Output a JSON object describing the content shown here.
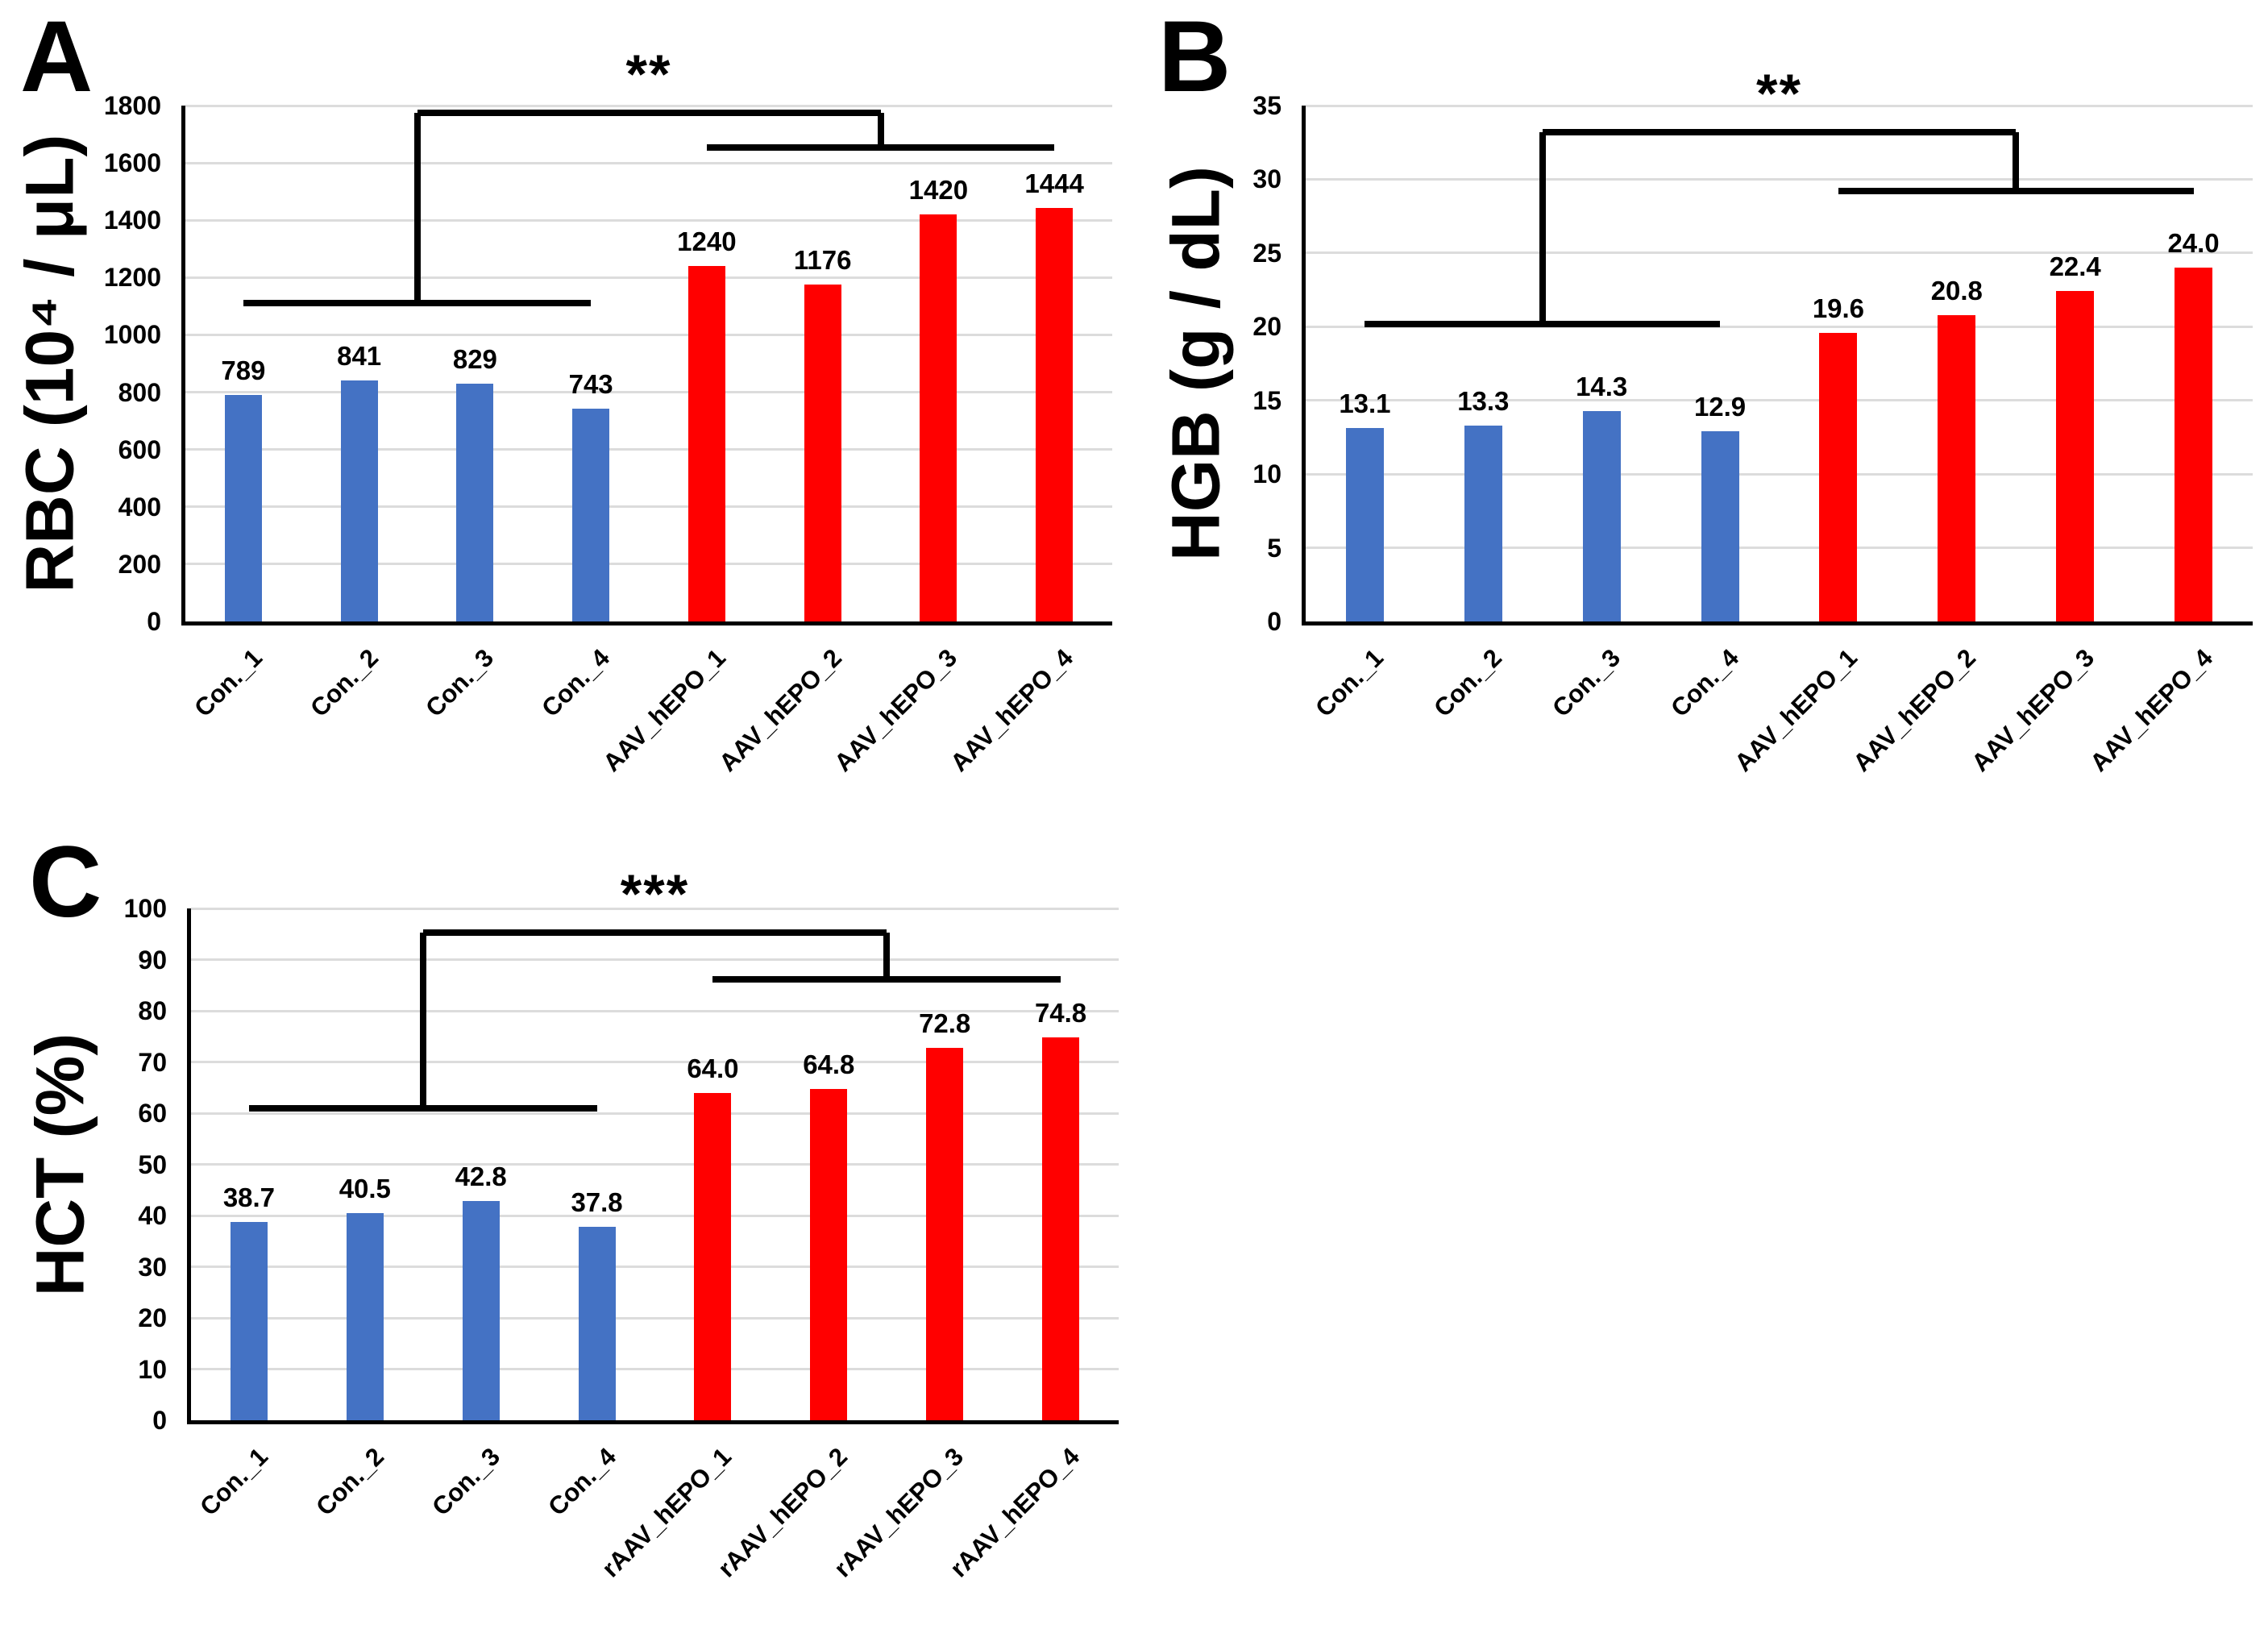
{
  "figure_colors": {
    "control_bar": "#4472C4",
    "treated_bar": "#FF0000",
    "gridline": "#DCDCDC",
    "axis": "#000000",
    "significance": "#000000",
    "background": "#FFFFFF"
  },
  "chart_data": [
    {
      "type": "bar",
      "panel": "A",
      "panel_label": "A",
      "ylabel": "RBC (10⁴ / μL)",
      "xlabel": "",
      "ylim": [
        0,
        1800
      ],
      "y_tick_step": 200,
      "y_tick_labels": [
        "0",
        "200",
        "400",
        "600",
        "800",
        "1000",
        "1200",
        "1400",
        "1600",
        "1800"
      ],
      "grid": true,
      "legend": "none",
      "categories": [
        "Con._1",
        "Con._2",
        "Con._3",
        "Con._4",
        "AAV_hEPO_1",
        "AAV_hEPO_2",
        "AAV_hEPO_3",
        "AAV_hEPO_4"
      ],
      "values": [
        789,
        841,
        829,
        743,
        1240,
        1176,
        1420,
        1444
      ],
      "value_labels": [
        "789",
        "841",
        "829",
        "743",
        "1240",
        "1176",
        "1420",
        "1444"
      ],
      "bar_groups": [
        "control",
        "control",
        "control",
        "control",
        "treated",
        "treated",
        "treated",
        "treated"
      ],
      "significance": {
        "label": "**",
        "group1": [
          0,
          3
        ],
        "group2": [
          4,
          7
        ],
        "group1_line_y": 1110,
        "group2_line_y": 1655,
        "bridge_y": 1775
      }
    },
    {
      "type": "bar",
      "panel": "B",
      "panel_label": "B",
      "ylabel": "HGB (g / dL)",
      "xlabel": "",
      "ylim": [
        0,
        35
      ],
      "y_tick_step": 5,
      "y_tick_labels": [
        "0",
        "5",
        "10",
        "15",
        "20",
        "25",
        "30",
        "35"
      ],
      "grid": true,
      "legend": "none",
      "categories": [
        "Con._1",
        "Con._2",
        "Con._3",
        "Con._4",
        "AAV_hEPO_1",
        "AAV_hEPO_2",
        "AAV_hEPO_3",
        "AAV_hEPO_4"
      ],
      "values": [
        13.1,
        13.3,
        14.3,
        12.9,
        19.6,
        20.8,
        22.4,
        24.0
      ],
      "value_labels": [
        "13.1",
        "13.3",
        "14.3",
        "12.9",
        "19.6",
        "20.8",
        "22.4",
        "24.0"
      ],
      "bar_groups": [
        "control",
        "control",
        "control",
        "control",
        "treated",
        "treated",
        "treated",
        "treated"
      ],
      "significance": {
        "label": "**",
        "group1": [
          0,
          3
        ],
        "group2": [
          4,
          7
        ],
        "group1_line_y": 20.2,
        "group2_line_y": 29.2,
        "bridge_y": 33.2
      }
    },
    {
      "type": "bar",
      "panel": "C",
      "panel_label": "C",
      "ylabel": "HCT (%)",
      "xlabel": "",
      "ylim": [
        0,
        100
      ],
      "y_tick_step": 10,
      "y_tick_labels": [
        "0",
        "10",
        "20",
        "30",
        "40",
        "50",
        "60",
        "70",
        "80",
        "90",
        "100"
      ],
      "grid": true,
      "legend": "none",
      "categories": [
        "Con._1",
        "Con._2",
        "Con._3",
        "Con._4",
        "rAAV_hEPO_1",
        "rAAV_hEPO_2",
        "rAAV_hEPO_3",
        "rAAV_hEPO_4"
      ],
      "values": [
        38.7,
        40.5,
        42.8,
        37.8,
        64.0,
        64.8,
        72.8,
        74.8
      ],
      "value_labels": [
        "38.7",
        "40.5",
        "42.8",
        "37.8",
        "64.0",
        "64.8",
        "72.8",
        "74.8"
      ],
      "bar_groups": [
        "control",
        "control",
        "control",
        "control",
        "treated",
        "treated",
        "treated",
        "treated"
      ],
      "significance": {
        "label": "***",
        "group1": [
          0,
          3
        ],
        "group2": [
          4,
          7
        ],
        "group1_line_y": 61,
        "group2_line_y": 86.2,
        "bridge_y": 95.2
      }
    }
  ]
}
